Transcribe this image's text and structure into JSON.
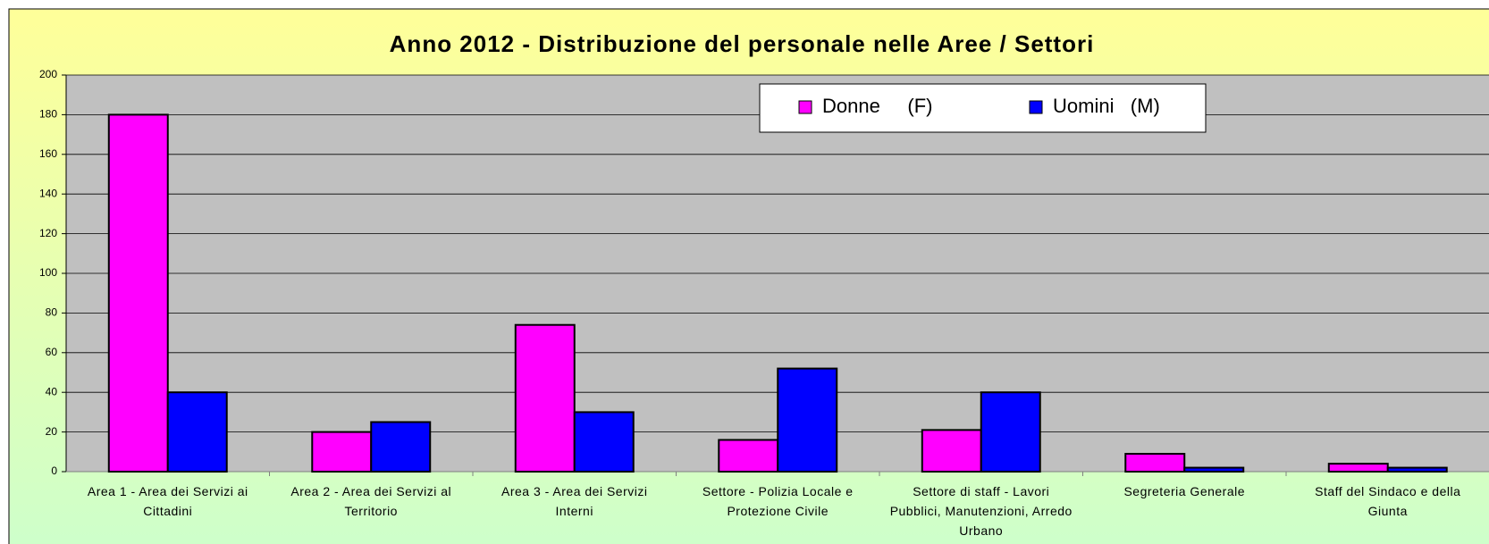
{
  "chart_data": {
    "type": "bar",
    "title": "Anno 2012 - Distribuzione del personale nelle Aree / Settori",
    "categories": [
      "Area 1 - Area dei Servizi ai Cittadini",
      "Area 2 - Area dei Servizi al Territorio",
      "Area 3 - Area dei Servizi Interni",
      "Settore - Polizia Locale e Protezione Civile",
      "Settore di staff - Lavori Pubblici, Manutenzioni, Arredo Urbano",
      "Segreteria Generale",
      "Staff del Sindaco e della Giunta"
    ],
    "series": [
      {
        "name": "Donne     (F)",
        "color": "#ff00ff",
        "values": [
          180,
          20,
          74,
          16,
          21,
          9,
          4
        ]
      },
      {
        "name": "Uomini   (M)",
        "color": "#0000ff",
        "values": [
          40,
          25,
          30,
          52,
          40,
          2,
          2
        ]
      }
    ],
    "ylim": [
      0,
      200
    ],
    "yticks": [
      0,
      20,
      40,
      60,
      80,
      100,
      120,
      140,
      160,
      180,
      200
    ],
    "grid": true,
    "legend": "top"
  }
}
